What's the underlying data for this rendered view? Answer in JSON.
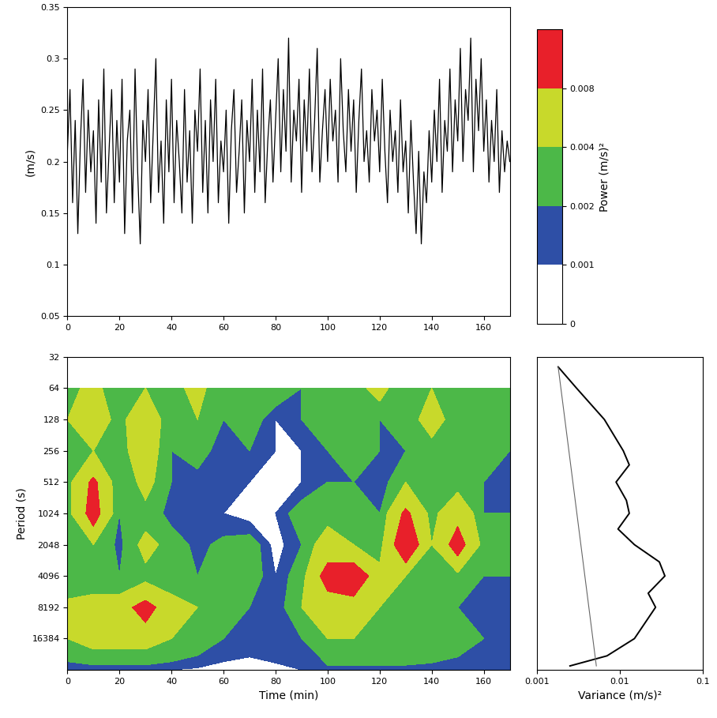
{
  "chart_data": [
    {
      "type": "line",
      "y_label": "(m/s)",
      "color": "#000000",
      "x": [
        0,
        1,
        2,
        3,
        4,
        5,
        6,
        7,
        8,
        9,
        10,
        11,
        12,
        13,
        14,
        15,
        16,
        17,
        18,
        19,
        20,
        21,
        22,
        23,
        24,
        25,
        26,
        27,
        28,
        29,
        30,
        31,
        32,
        33,
        34,
        35,
        36,
        37,
        38,
        39,
        40,
        41,
        42,
        43,
        44,
        45,
        46,
        47,
        48,
        49,
        50,
        51,
        52,
        53,
        54,
        55,
        56,
        57,
        58,
        59,
        60,
        61,
        62,
        63,
        64,
        65,
        66,
        67,
        68,
        69,
        70,
        71,
        72,
        73,
        74,
        75,
        76,
        77,
        78,
        79,
        80,
        81,
        82,
        83,
        84,
        85,
        86,
        87,
        88,
        89,
        90,
        91,
        92,
        93,
        94,
        95,
        96,
        97,
        98,
        99,
        100,
        101,
        102,
        103,
        104,
        105,
        106,
        107,
        108,
        109,
        110,
        111,
        112,
        113,
        114,
        115,
        116,
        117,
        118,
        119,
        120,
        121,
        122,
        123,
        124,
        125,
        126,
        127,
        128,
        129,
        130,
        131,
        132,
        133,
        134,
        135,
        136,
        137,
        138,
        139,
        140,
        141,
        142,
        143,
        144,
        145,
        146,
        147,
        148,
        149,
        150,
        151,
        152,
        153,
        154,
        155,
        156,
        157,
        158,
        159,
        160,
        161,
        162,
        163,
        164,
        165,
        166,
        167,
        168,
        169,
        170
      ],
      "values": [
        0.21,
        0.27,
        0.16,
        0.24,
        0.13,
        0.22,
        0.28,
        0.17,
        0.25,
        0.19,
        0.23,
        0.14,
        0.26,
        0.18,
        0.29,
        0.15,
        0.21,
        0.27,
        0.16,
        0.24,
        0.18,
        0.28,
        0.13,
        0.22,
        0.25,
        0.15,
        0.29,
        0.19,
        0.12,
        0.24,
        0.2,
        0.27,
        0.16,
        0.23,
        0.3,
        0.17,
        0.22,
        0.14,
        0.26,
        0.19,
        0.28,
        0.16,
        0.24,
        0.2,
        0.15,
        0.27,
        0.18,
        0.23,
        0.14,
        0.25,
        0.21,
        0.29,
        0.17,
        0.24,
        0.15,
        0.26,
        0.2,
        0.28,
        0.16,
        0.22,
        0.19,
        0.25,
        0.14,
        0.23,
        0.27,
        0.17,
        0.21,
        0.26,
        0.15,
        0.24,
        0.2,
        0.28,
        0.17,
        0.25,
        0.19,
        0.29,
        0.16,
        0.22,
        0.26,
        0.18,
        0.24,
        0.3,
        0.19,
        0.27,
        0.21,
        0.32,
        0.18,
        0.25,
        0.22,
        0.28,
        0.17,
        0.26,
        0.21,
        0.29,
        0.19,
        0.24,
        0.31,
        0.18,
        0.23,
        0.27,
        0.2,
        0.28,
        0.22,
        0.25,
        0.18,
        0.3,
        0.23,
        0.19,
        0.27,
        0.21,
        0.26,
        0.17,
        0.24,
        0.29,
        0.2,
        0.23,
        0.18,
        0.27,
        0.22,
        0.25,
        0.19,
        0.28,
        0.21,
        0.16,
        0.25,
        0.2,
        0.23,
        0.17,
        0.26,
        0.19,
        0.22,
        0.15,
        0.24,
        0.18,
        0.13,
        0.21,
        0.12,
        0.19,
        0.16,
        0.23,
        0.18,
        0.25,
        0.2,
        0.28,
        0.17,
        0.24,
        0.21,
        0.29,
        0.19,
        0.26,
        0.22,
        0.31,
        0.2,
        0.27,
        0.24,
        0.32,
        0.19,
        0.28,
        0.23,
        0.3,
        0.21,
        0.26,
        0.18,
        0.24,
        0.2,
        0.27,
        0.17,
        0.23,
        0.19,
        0.22,
        0.2
      ],
      "xlim": [
        0,
        170
      ],
      "xticks": [
        0,
        20,
        40,
        60,
        80,
        100,
        120,
        140,
        160
      ],
      "ylim": [
        0.05,
        0.35
      ],
      "yticks": [
        0.05,
        0.1,
        0.15,
        0.2,
        0.25,
        0.3,
        0.35
      ]
    },
    {
      "type": "contour",
      "x_label": "Time (min)",
      "y_label": "Period (s)",
      "log": "y",
      "times": [
        0,
        10,
        20,
        30,
        40,
        50,
        60,
        70,
        80,
        90,
        100,
        110,
        120,
        130,
        140,
        150,
        160,
        170
      ],
      "periods": [
        64,
        128,
        256,
        512,
        1024,
        2048,
        4096,
        8192,
        16384,
        32768
      ],
      "power": [
        [
          0.003,
          0.005,
          0.002,
          0.004,
          0.003,
          0.005,
          0.002,
          0.004,
          0.003,
          0.002,
          0.004,
          0.003,
          0.005,
          0.002,
          0.004,
          0.003,
          0.004,
          0.003
        ],
        [
          0.004,
          0.006,
          0.003,
          0.007,
          0.002,
          0.004,
          0.002,
          0.003,
          0.001,
          0.002,
          0.003,
          0.004,
          0.002,
          0.003,
          0.005,
          0.003,
          0.004,
          0.003
        ],
        [
          0.002,
          0.004,
          0.003,
          0.006,
          0.002,
          0.003,
          0.001,
          0.002,
          0.001,
          0.001,
          0.002,
          0.003,
          0.002,
          0.002,
          0.003,
          0.002,
          0.003,
          0.002
        ],
        [
          0.003,
          0.009,
          0.002,
          0.005,
          0.002,
          0.001,
          0.0015,
          0.001,
          0.0005,
          0.001,
          0.002,
          0.002,
          0.001,
          0.004,
          0.002,
          0.003,
          0.002,
          0.002
        ],
        [
          0.003,
          0.01,
          0.002,
          0.003,
          0.0015,
          0.002,
          0.001,
          0.0005,
          0.001,
          0.003,
          0.003,
          0.0025,
          0.002,
          0.009,
          0.003,
          0.007,
          0.002,
          0.002
        ],
        [
          0.003,
          0.004,
          0.0015,
          0.005,
          0.003,
          0.0015,
          0.0025,
          0.003,
          0.0005,
          0.002,
          0.006,
          0.004,
          0.003,
          0.012,
          0.004,
          0.01,
          0.003,
          0.003
        ],
        [
          0.002,
          0.003,
          0.002,
          0.003,
          0.003,
          0.002,
          0.004,
          0.003,
          0.001,
          0.003,
          0.01,
          0.012,
          0.005,
          0.004,
          0.003,
          0.003,
          0.002,
          0.002
        ],
        [
          0.005,
          0.005,
          0.006,
          0.01,
          0.005,
          0.004,
          0.003,
          0.002,
          0.001,
          0.004,
          0.005,
          0.005,
          0.004,
          0.003,
          0.002,
          0.002,
          0.002,
          0.002
        ],
        [
          0.004,
          0.005,
          0.005,
          0.005,
          0.004,
          0.003,
          0.002,
          0.0015,
          0.0015,
          0.002,
          0.004,
          0.004,
          0.004,
          0.004,
          0.004,
          0.003,
          0.002,
          0.002
        ],
        [
          0.001,
          0.0012,
          0.0012,
          0.0012,
          0.001,
          0.0008,
          0.0005,
          0.0005,
          0.0008,
          0.001,
          0.0015,
          0.0015,
          0.0015,
          0.0015,
          0.0012,
          0.001,
          0.001,
          0.001
        ]
      ],
      "levels": [
        0,
        0.001,
        0.002,
        0.004,
        0.008,
        0.05
      ],
      "colors": [
        "#ffffff",
        "#2e4fa6",
        "#4cb848",
        "#c8d92b",
        "#e8202a"
      ],
      "colorbar_label": "Power (m/s)²",
      "colorbar_ticks": [
        0,
        0.001,
        0.002,
        0.004,
        0.008
      ],
      "xlim": [
        0,
        170
      ],
      "xticks": [
        0,
        20,
        40,
        60,
        80,
        100,
        120,
        140,
        160
      ],
      "ylim": [
        32768,
        32
      ],
      "yticks": [
        32,
        64,
        128,
        256,
        512,
        1024,
        2048,
        4096,
        8192,
        16384
      ]
    },
    {
      "type": "line",
      "x_label": "Variance (m/s)²",
      "log": true,
      "tick_labels": "x",
      "series": [
        {
          "color": "#000000",
          "line_style": "solid",
          "period": [
            40,
            64,
            128,
            256,
            350,
            512,
            768,
            1024,
            1448,
            2048,
            3000,
            4096,
            6000,
            8192,
            16384,
            24000,
            30000
          ],
          "variance": [
            0.0018,
            0.003,
            0.0065,
            0.011,
            0.013,
            0.009,
            0.012,
            0.013,
            0.0095,
            0.015,
            0.03,
            0.035,
            0.022,
            0.027,
            0.015,
            0.007,
            0.0025
          ]
        },
        {
          "color": "#666666",
          "line_style": "solid",
          "period": [
            40,
            30000
          ],
          "variance": [
            0.0018,
            0.0052
          ]
        }
      ],
      "xlim": [
        0.001,
        0.1
      ],
      "xticks": [
        0.001,
        0.01,
        0.1
      ],
      "ylim": [
        32768,
        32
      ]
    }
  ]
}
